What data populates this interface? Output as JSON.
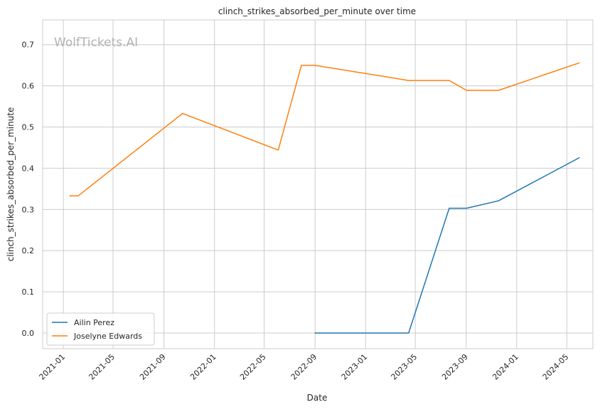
{
  "watermark": "WolfTickets.AI",
  "chart_data": {
    "type": "line",
    "title": "clinch_strikes_absorbed_per_minute over time",
    "xlabel": "Date",
    "ylabel": "clinch_strikes_absorbed_per_minute",
    "x_ticks": [
      "2021-01",
      "2021-05",
      "2021-09",
      "2022-01",
      "2022-05",
      "2022-09",
      "2023-01",
      "2023-05",
      "2023-09",
      "2024-01",
      "2024-05"
    ],
    "y_ticks": [
      "0.0",
      "0.1",
      "0.2",
      "0.3",
      "0.4",
      "0.5",
      "0.6",
      "0.7"
    ],
    "ylim": [
      -0.038,
      0.76
    ],
    "xlim": [
      "2020-11-12",
      "2024-07-03"
    ],
    "grid": true,
    "legend_position": "lower-left",
    "series": [
      {
        "name": "Ailin Perez",
        "color": "#1f77b4",
        "points": [
          {
            "x": "2022-08-31",
            "y": 0.0
          },
          {
            "x": "2023-04-15",
            "y": 0.0
          },
          {
            "x": "2023-07-22",
            "y": 0.303
          },
          {
            "x": "2023-09-02",
            "y": 0.303
          },
          {
            "x": "2023-11-18",
            "y": 0.321
          },
          {
            "x": "2024-06-01",
            "y": 0.426
          }
        ]
      },
      {
        "name": "Joselyne Edwards",
        "color": "#ff7f0e",
        "points": [
          {
            "x": "2021-01-16",
            "y": 0.333
          },
          {
            "x": "2021-02-06",
            "y": 0.333
          },
          {
            "x": "2021-10-16",
            "y": 0.533
          },
          {
            "x": "2022-06-04",
            "y": 0.444
          },
          {
            "x": "2022-07-30",
            "y": 0.65
          },
          {
            "x": "2022-08-31",
            "y": 0.65
          },
          {
            "x": "2023-04-15",
            "y": 0.613
          },
          {
            "x": "2023-07-22",
            "y": 0.613
          },
          {
            "x": "2023-09-02",
            "y": 0.589
          },
          {
            "x": "2023-11-18",
            "y": 0.589
          },
          {
            "x": "2024-06-01",
            "y": 0.656
          }
        ]
      }
    ]
  }
}
